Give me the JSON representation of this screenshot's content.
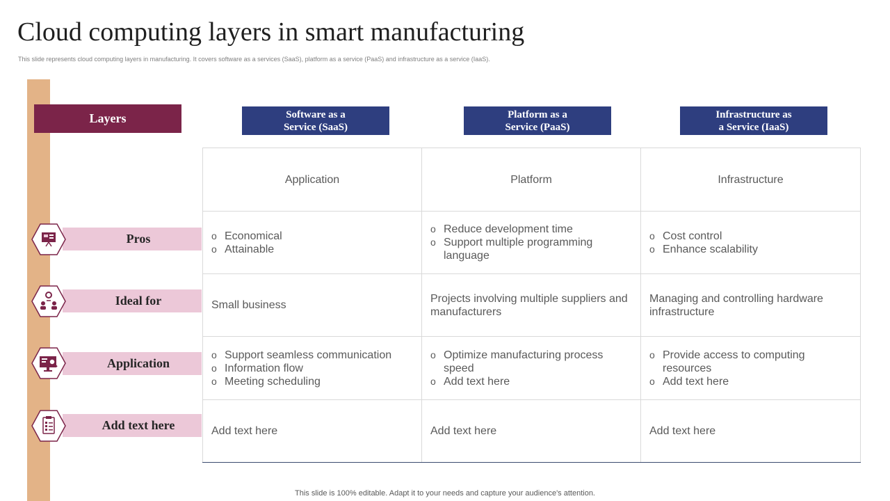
{
  "title": "Cloud computing layers in smart manufacturing",
  "subtitle": "This slide represents cloud computing layers in manufacturing. It covers software as a services (SaaS), platform as a service (PaaS) and infrastructure as a service (IaaS).",
  "layers_label": "Layers",
  "columns": [
    {
      "label": "Software as a\nService (SaaS)"
    },
    {
      "label": "Platform as a\nService (PaaS)"
    },
    {
      "label": "Infrastructure as\na Service (IaaS)"
    }
  ],
  "rows": [
    {
      "label": "Pros",
      "icon": "presentation-icon"
    },
    {
      "label": "Ideal for",
      "icon": "team-gear-icon"
    },
    {
      "label": "Application",
      "icon": "monitor-search-icon"
    },
    {
      "label": "Add text here",
      "icon": "checklist-icon"
    }
  ],
  "table": {
    "header": [
      "Application",
      "Platform",
      "Infrastructure"
    ],
    "pros": [
      [
        "Economical",
        "Attainable"
      ],
      [
        "Reduce development time",
        "Support multiple programming language"
      ],
      [
        "Cost control",
        "Enhance scalability"
      ]
    ],
    "ideal_for": [
      "Small business",
      "Projects involving multiple suppliers and manufacturers",
      "Managing and controlling hardware infrastructure"
    ],
    "application": [
      [
        "Support seamless communication",
        "Information flow",
        "Meeting scheduling"
      ],
      [
        "Optimize manufacturing process speed",
        "Add text here"
      ],
      [
        "Provide access to computing resources",
        "Add text here"
      ]
    ],
    "add_text": [
      "Add text here",
      "Add text here",
      "Add text here"
    ]
  },
  "footer": "This slide is 100% editable. Adapt it to your needs and capture your audience's attention.",
  "colors": {
    "accent_maroon": "#7b2449",
    "header_blue": "#2e3e7f",
    "label_pink": "#ecc8d8",
    "side_bar": "#e3b387"
  }
}
